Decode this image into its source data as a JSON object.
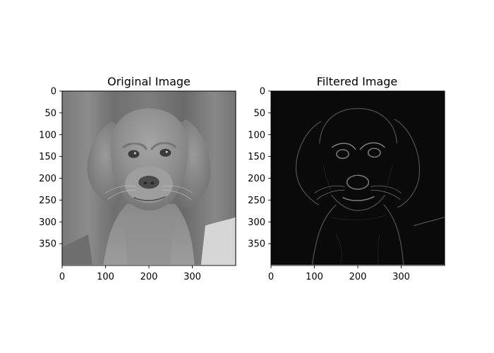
{
  "chart_data": [
    {
      "type": "heatmap",
      "title": "Original Image",
      "colormap": "gray",
      "image_size": [
        400,
        400
      ],
      "xlim": [
        0,
        400
      ],
      "ylim": [
        400,
        0
      ],
      "y_inverted": true,
      "x_ticks": [
        0,
        100,
        200,
        300
      ],
      "y_ticks": [
        0,
        50,
        100,
        150,
        200,
        250,
        300,
        350
      ],
      "grid": false,
      "content": "grayscale photo of a puppy"
    },
    {
      "type": "heatmap",
      "title": "Filtered Image",
      "colormap": "gray",
      "image_size": [
        400,
        400
      ],
      "xlim": [
        0,
        400
      ],
      "ylim": [
        400,
        0
      ],
      "y_inverted": true,
      "x_ticks": [
        0,
        100,
        200,
        300
      ],
      "y_ticks": [
        0,
        50,
        100,
        150,
        200,
        250,
        300,
        350
      ],
      "grid": false,
      "content": "edge-detection result, mostly black with light edges"
    }
  ]
}
